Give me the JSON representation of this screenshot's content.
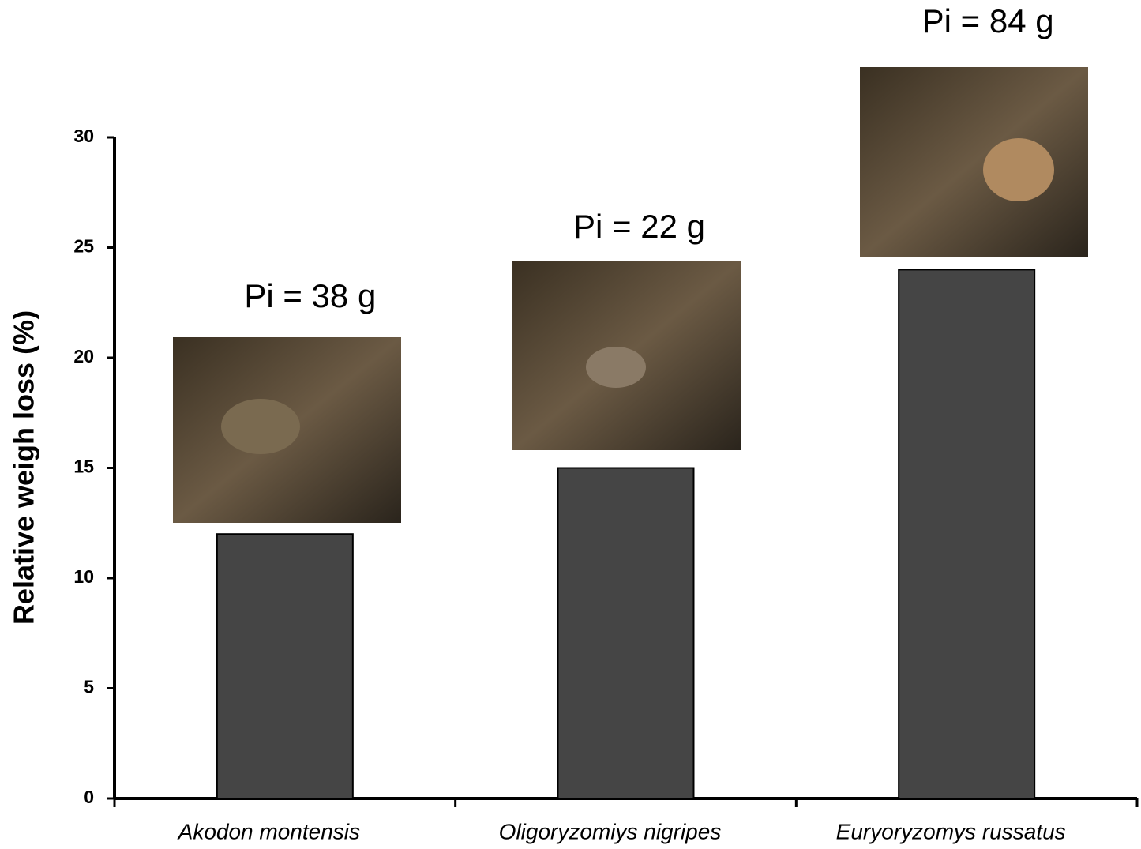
{
  "chart_data": {
    "type": "bar",
    "y_label": "Relative weigh loss (%)",
    "categories": [
      "Akodon montensis",
      "Oligoryzomiys nigripes",
      "Euryoryzomys russatus"
    ],
    "values": [
      12,
      15,
      24
    ],
    "color": "#454545",
    "ylim": [
      0,
      30
    ],
    "yticks": [
      0,
      5,
      10,
      15,
      20,
      25,
      30
    ],
    "annotations": [
      "Pi = 38 g",
      "Pi = 22 g",
      "Pi = 84 g"
    ]
  }
}
